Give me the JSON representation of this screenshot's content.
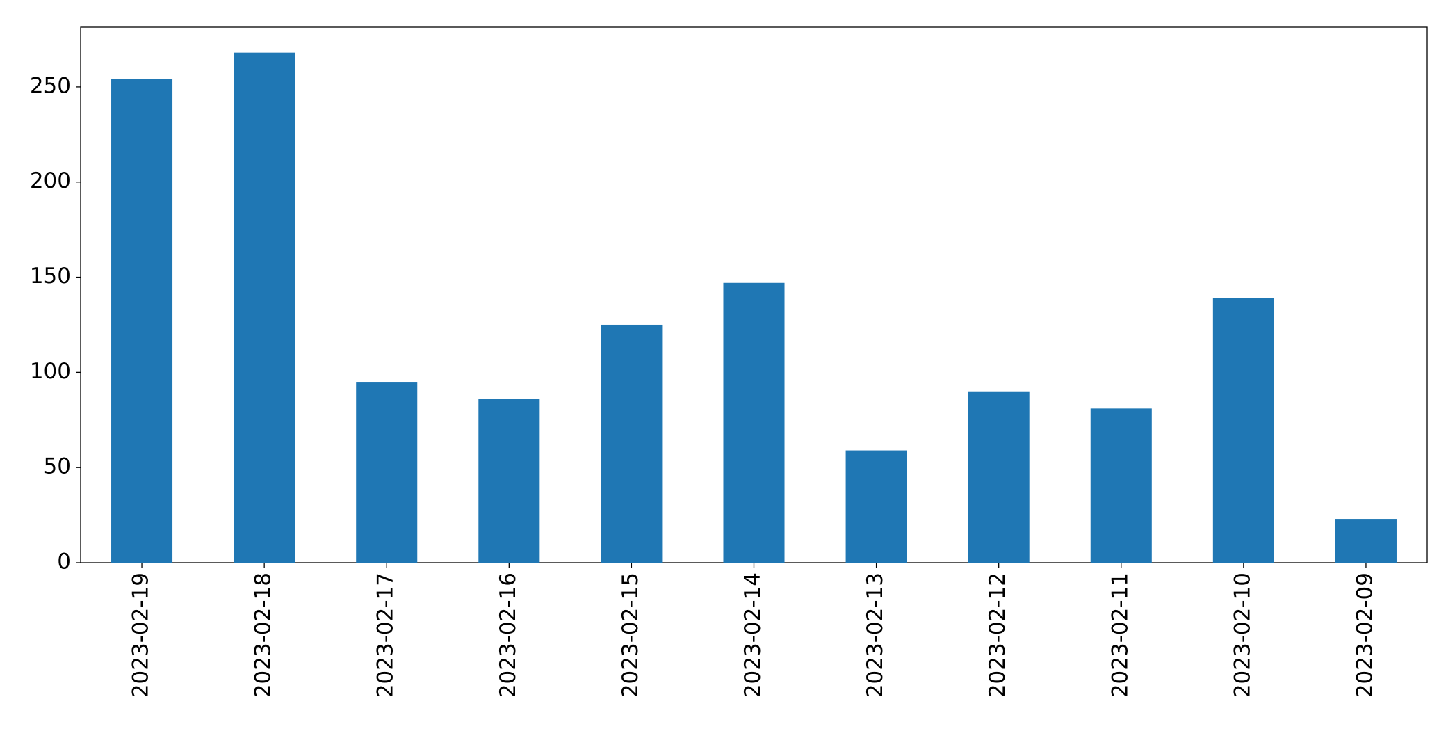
{
  "chart_data": {
    "type": "bar",
    "categories": [
      "2023-02-19",
      "2023-02-18",
      "2023-02-17",
      "2023-02-16",
      "2023-02-15",
      "2023-02-14",
      "2023-02-13",
      "2023-02-12",
      "2023-02-11",
      "2023-02-10",
      "2023-02-09"
    ],
    "values": [
      254,
      268,
      95,
      86,
      125,
      147,
      59,
      90,
      81,
      139,
      23
    ],
    "color": "#1f77b4",
    "ylim": [
      0,
      281.4
    ],
    "yticks": [
      0,
      50,
      100,
      150,
      200,
      250
    ],
    "grid": false
  }
}
